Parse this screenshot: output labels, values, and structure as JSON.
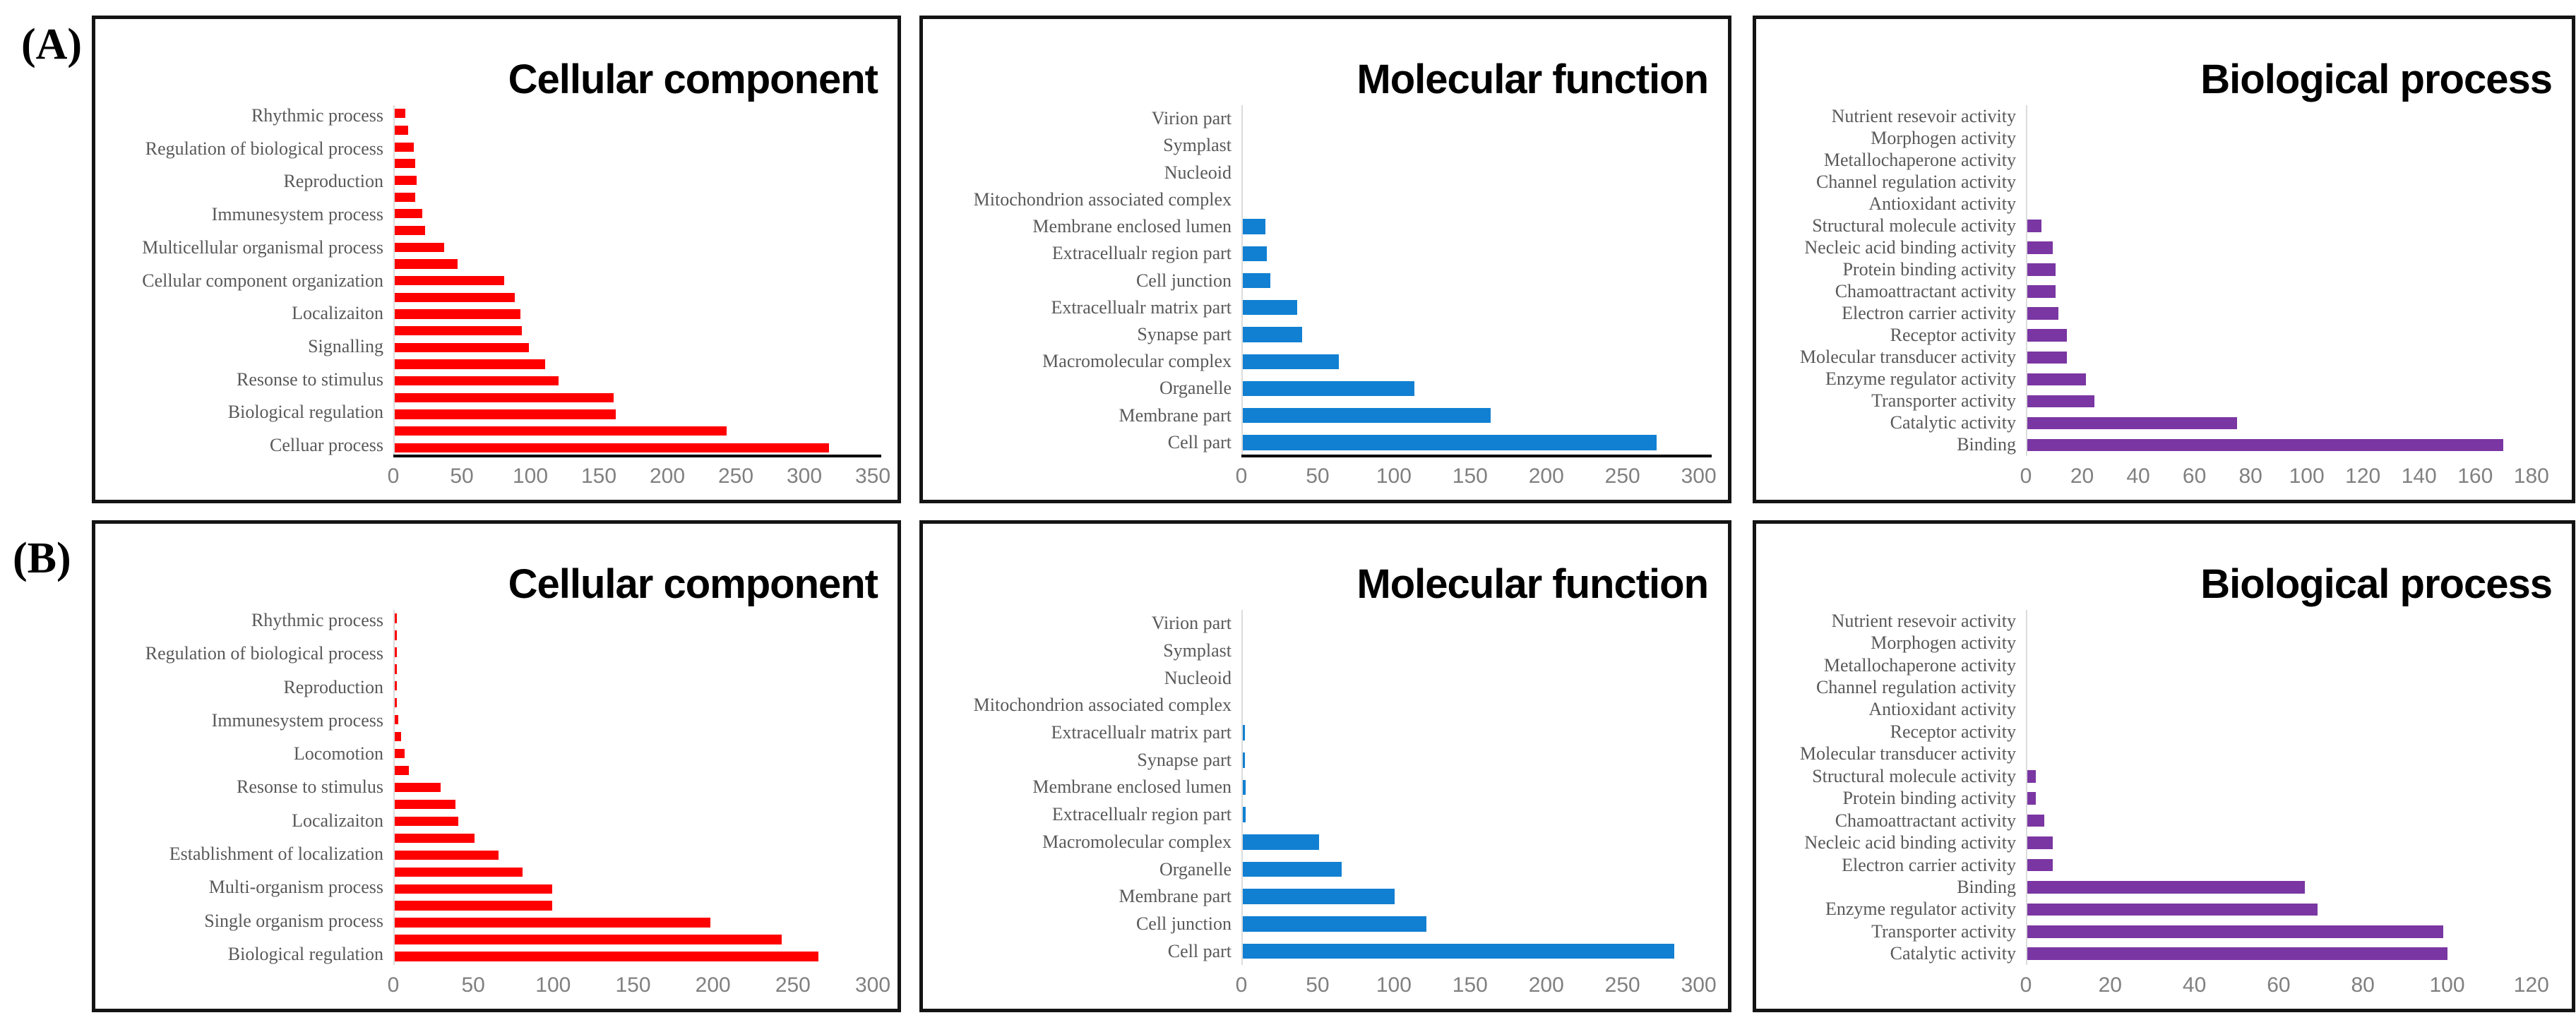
{
  "figure": {
    "row_a_label": "(A)",
    "row_b_label": "(B)"
  },
  "colors": {
    "red": "#FF0000",
    "blue": "#1180D2",
    "purple": "#7A36A2",
    "category_label": "#595959",
    "tick_label": "#808080",
    "axis_line": "#DCDCDC",
    "panel_border": "#141414"
  },
  "chart_data": [
    {
      "type": "bar",
      "orientation": "horizontal",
      "row": "A",
      "title": "Cellular component",
      "color": "#FF0000",
      "xlim": [
        0,
        350
      ],
      "xticks": [
        0,
        50,
        100,
        150,
        200,
        250,
        300,
        350
      ],
      "baseline": true,
      "grid": false,
      "categories": [
        "Rhythmic process",
        "",
        "Regulation of biological process",
        "",
        "Reproduction",
        "",
        "Immunesystem process",
        "",
        "Multicellular organismal process",
        "",
        "Cellular component organization",
        "",
        "Localizaiton",
        "",
        "Signalling",
        "",
        "Resonse to stimulus",
        "",
        "Biological regulation",
        "",
        "Celluar process"
      ],
      "values": [
        8,
        10,
        14,
        15,
        16,
        15,
        20,
        22,
        36,
        46,
        80,
        88,
        92,
        93,
        98,
        110,
        120,
        160,
        162,
        243,
        318
      ]
    },
    {
      "type": "bar",
      "orientation": "horizontal",
      "row": "A",
      "title": "Molecular function",
      "color": "#1180D2",
      "xlim": [
        0,
        300
      ],
      "xticks": [
        0,
        50,
        100,
        150,
        200,
        250,
        300
      ],
      "baseline": true,
      "grid": false,
      "categories": [
        "Virion part",
        "Symplast",
        "Nucleoid",
        "Mitochondrion associated complex",
        "Membrane enclosed lumen",
        "Extracellualr region part",
        "Cell junction",
        "Extracellualr matrix part",
        "Synapse part",
        "Macromolecular complex",
        "Organelle",
        "Membrane part",
        "Cell part"
      ],
      "values": [
        0,
        0,
        0,
        0,
        15,
        16,
        18,
        36,
        39,
        63,
        113,
        163,
        272
      ]
    },
    {
      "type": "bar",
      "orientation": "horizontal",
      "row": "A",
      "title": "Biological process",
      "color": "#7A36A2",
      "xlim": [
        0,
        180
      ],
      "xticks": [
        0,
        20,
        40,
        60,
        80,
        100,
        120,
        140,
        160,
        180
      ],
      "baseline": false,
      "grid": false,
      "categories": [
        "Nutrient resevoir activity",
        "Morphogen activity",
        "Metallochaperone activity",
        "Channel regulation activity",
        "Antioxidant activity",
        "Structural molecule activity",
        "Necleic acid binding activity",
        "Protein binding activity",
        "Chamoattractant activity",
        "Electron carrier activity",
        "Receptor activity",
        "Molecular transducer activity",
        "Enzyme regulator activity",
        "Transporter activity",
        "Catalytic activity",
        "Binding"
      ],
      "values": [
        0,
        0,
        0,
        0,
        0,
        5,
        9,
        10,
        10,
        11,
        14,
        14,
        21,
        24,
        75,
        170
      ]
    },
    {
      "type": "bar",
      "orientation": "horizontal",
      "row": "B",
      "title": "Cellular component",
      "color": "#FF0000",
      "xlim": [
        0,
        300
      ],
      "xticks": [
        0,
        50,
        100,
        150,
        200,
        250,
        300
      ],
      "baseline": false,
      "grid": false,
      "categories": [
        "Rhythmic process",
        "",
        "Regulation of biological process",
        "",
        "Reproduction",
        "",
        "Immunesystem process",
        "",
        "Locomotion",
        "",
        "Resonse to stimulus",
        "",
        "Localizaiton",
        "",
        "Establishment of localization",
        "",
        "Multi-organism process",
        "",
        "Single organism process",
        "",
        "Biological regulation"
      ],
      "values": [
        1,
        1,
        1,
        1,
        1,
        1,
        2,
        4,
        6,
        9,
        29,
        38,
        40,
        50,
        65,
        80,
        99,
        99,
        198,
        243,
        266
      ]
    },
    {
      "type": "bar",
      "orientation": "horizontal",
      "row": "B",
      "title": "Molecular function",
      "color": "#1180D2",
      "xlim": [
        0,
        300
      ],
      "xticks": [
        0,
        50,
        100,
        150,
        200,
        250,
        300
      ],
      "baseline": false,
      "grid": false,
      "categories": [
        "Virion part",
        "Symplast",
        "Nucleoid",
        "Mitochondrion associated complex",
        "Extracellualr matrix part",
        "Synapse part",
        "Membrane enclosed lumen",
        "Extracellualr region part",
        "Macromolecular complex",
        "Organelle",
        "Membrane part",
        "Cell junction",
        "Cell part"
      ],
      "values": [
        0,
        0,
        0,
        0,
        1,
        1,
        2,
        2,
        50,
        65,
        100,
        121,
        284
      ]
    },
    {
      "type": "bar",
      "orientation": "horizontal",
      "row": "B",
      "title": "Biological process",
      "color": "#7A36A2",
      "xlim": [
        0,
        120
      ],
      "xticks": [
        0,
        20,
        40,
        60,
        80,
        100,
        120
      ],
      "baseline": false,
      "grid": false,
      "categories": [
        "Nutrient resevoir activity",
        "Morphogen activity",
        "Metallochaperone activity",
        "Channel regulation activity",
        "Antioxidant activity",
        "Receptor activity",
        "Molecular transducer activity",
        "Structural molecule activity",
        "Protein binding activity",
        "Chamoattractant activity",
        "Necleic acid binding activity",
        "Electron carrier activity",
        "Binding",
        "Enzyme regulator activity",
        "Transporter activity",
        "Catalytic activity"
      ],
      "values": [
        0,
        0,
        0,
        0,
        0,
        0,
        0,
        2,
        2,
        4,
        6,
        6,
        66,
        69,
        99,
        100
      ]
    }
  ]
}
